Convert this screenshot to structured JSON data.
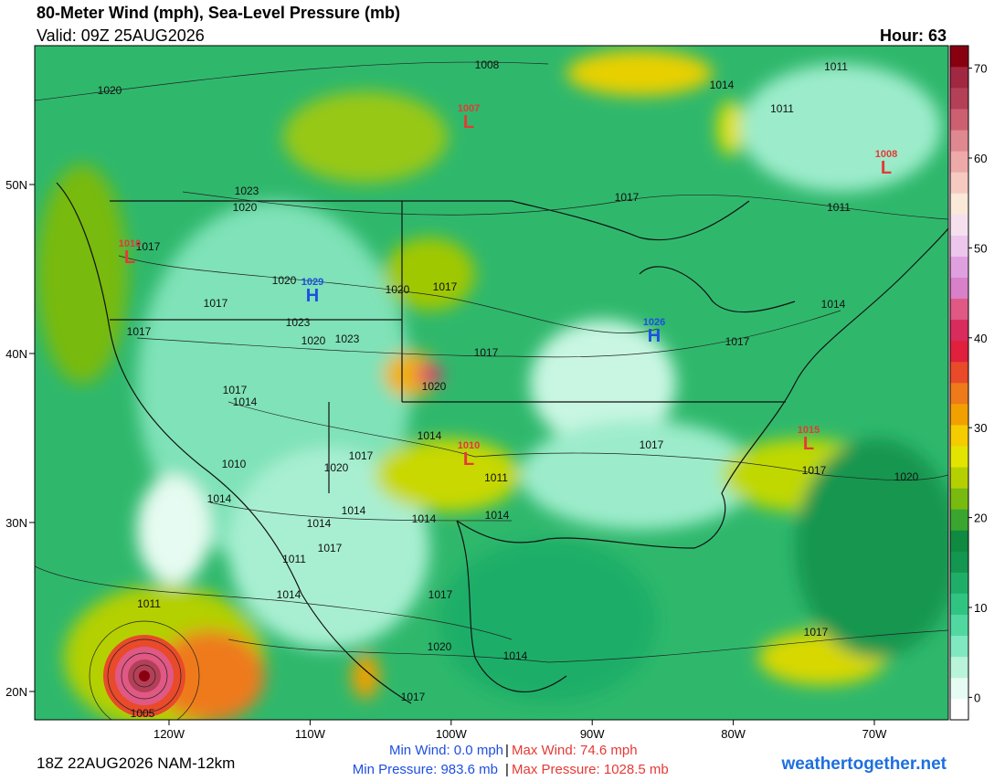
{
  "header": {
    "title": "80-Meter Wind (mph), Sea-Level Pressure (mb)",
    "valid": "Valid: 09Z 25AUG2026",
    "hour": "Hour: 63"
  },
  "map": {
    "lon_ticks": [
      {
        "value": -120,
        "label": "120W"
      },
      {
        "value": -110,
        "label": "110W"
      },
      {
        "value": -100,
        "label": "100W"
      },
      {
        "value": -90,
        "label": "90W"
      },
      {
        "value": -80,
        "label": "80W"
      },
      {
        "value": -70,
        "label": "70W"
      }
    ],
    "lat_ticks": [
      {
        "value": 50,
        "label": "50N"
      },
      {
        "value": 40,
        "label": "40N"
      },
      {
        "value": 30,
        "label": "30N"
      },
      {
        "value": 20,
        "label": "20N"
      }
    ],
    "centers": [
      {
        "letter": "L",
        "value": "1007",
        "color": "#e53935"
      },
      {
        "letter": "L",
        "value": "1008",
        "color": "#e53935"
      },
      {
        "letter": "L",
        "value": "1010",
        "color": "#e53935"
      },
      {
        "letter": "H",
        "value": "1029",
        "color": "#1e4fe0"
      },
      {
        "letter": "H",
        "value": "1026",
        "color": "#1e4fe0"
      },
      {
        "letter": "L",
        "value": "1015",
        "color": "#e53935"
      },
      {
        "letter": "L",
        "value": "1010",
        "color": "#e53935"
      }
    ],
    "isobar_labels": [
      "1008",
      "1020",
      "1014",
      "1011",
      "1011",
      "1023",
      "1020",
      "1017",
      "1011",
      "1017",
      "1020",
      "1020",
      "1017",
      "1017",
      "1017",
      "1023",
      "1020",
      "1023",
      "1017",
      "1014",
      "1017",
      "1020",
      "1017",
      "1014",
      "1014",
      "1017",
      "1017",
      "1010",
      "1020",
      "1011",
      "1017",
      "1020",
      "1014",
      "1014",
      "1014",
      "1014",
      "1014",
      "1017",
      "1011",
      "1014",
      "1017",
      "1011",
      "1017",
      "1020",
      "1014",
      "1017",
      "1005"
    ]
  },
  "colorbar": {
    "clim": [
      -2.5,
      72.5
    ],
    "ticks": [
      0,
      10,
      20,
      30,
      40,
      50,
      60,
      70
    ],
    "colors": [
      "#ffffff",
      "#e6fbf1",
      "#b8f3da",
      "#80e8c0",
      "#50d8a0",
      "#30c483",
      "#1fae68",
      "#139650",
      "#0f8a40",
      "#3aa630",
      "#78ba10",
      "#b4d000",
      "#e2e400",
      "#f4cc00",
      "#f2a000",
      "#ee7a1a",
      "#e84a2a",
      "#e0203c",
      "#d82c5c",
      "#e05884",
      "#d880c8",
      "#e0a0e0",
      "#ecc6ec",
      "#f6e0ee",
      "#fae8d8",
      "#f6cac0",
      "#eeaaa8",
      "#e08890",
      "#cc6070",
      "#b44058",
      "#a02840",
      "#880010"
    ]
  },
  "footer": {
    "run": "18Z 22AUG2026 NAM-12km",
    "min_wind": "Min Wind:  0.0 mph",
    "separator": "|",
    "max_wind": "Max Wind: 74.6 mph",
    "min_pressure": "Min Pressure: 983.6 mb",
    "max_pressure": "Max Pressure: 1028.5 mb",
    "site": "weathertogether.net"
  }
}
